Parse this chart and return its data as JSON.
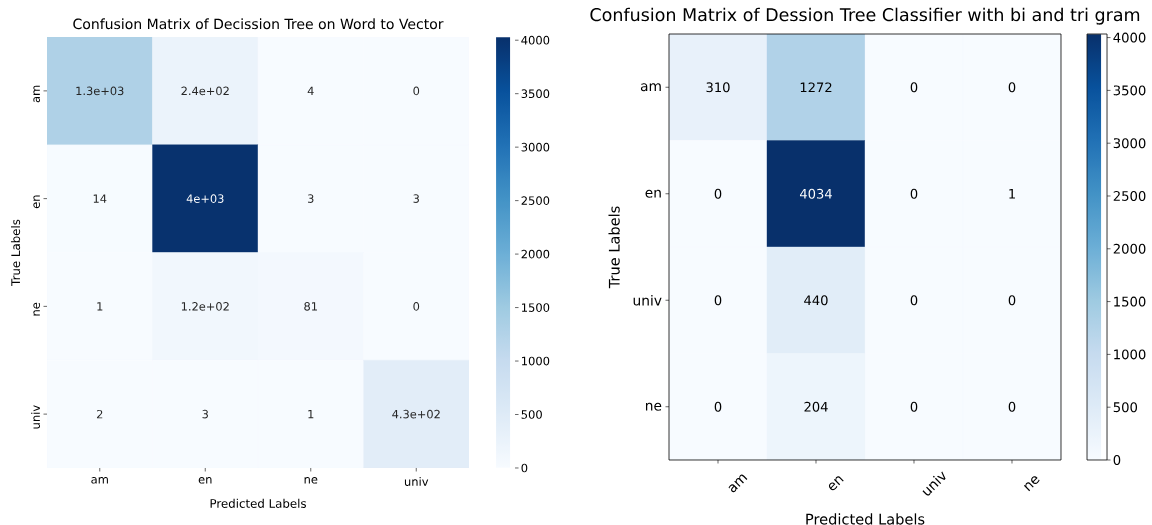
{
  "chart_data": [
    {
      "type": "heatmap",
      "title": "Confusion Matrix of Decission Tree on Word to Vector",
      "xlabel": "Predicted Labels",
      "ylabel": "True Labels",
      "categories": [
        "am",
        "en",
        "ne",
        "univ"
      ],
      "y_categories": [
        "am",
        "en",
        "ne",
        "univ"
      ],
      "cells": [
        [
          1300,
          240,
          4,
          0
        ],
        [
          14,
          4000,
          3,
          3
        ],
        [
          1,
          120,
          81,
          0
        ],
        [
          2,
          3,
          1,
          430
        ]
      ],
      "cell_labels": [
        [
          "1.3e+03",
          "2.4e+02",
          "4",
          "0"
        ],
        [
          "14",
          "4e+03",
          "3",
          "3"
        ],
        [
          "1",
          "1.2e+02",
          "81",
          "0"
        ],
        [
          "2",
          "3",
          "1",
          "4.3e+02"
        ]
      ],
      "clim": [
        0,
        4030
      ],
      "cticks": [
        0,
        500,
        1000,
        1500,
        2000,
        2500,
        3000,
        3500,
        4000
      ]
    },
    {
      "type": "heatmap",
      "title": "Confusion Matrix of Dession Tree Classifier with bi and tri gram",
      "xlabel": "Predicted Labels",
      "ylabel": "True Labels",
      "categories": [
        "am",
        "en",
        "univ",
        "ne"
      ],
      "y_categories": [
        "am",
        "en",
        "univ",
        "ne"
      ],
      "cells": [
        [
          310,
          1272,
          0,
          0
        ],
        [
          0,
          4034,
          0,
          1
        ],
        [
          0,
          440,
          0,
          0
        ],
        [
          0,
          204,
          0,
          0
        ]
      ],
      "data_labels": true,
      "clim": [
        0,
        4034
      ],
      "cticks": [
        0,
        500,
        1000,
        1500,
        2000,
        2500,
        3000,
        3500,
        4000
      ]
    }
  ]
}
